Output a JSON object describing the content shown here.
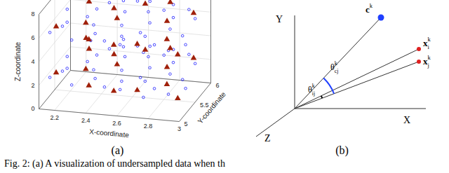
{
  "caption": "Fig. 2: (a) A visualization of undersampled data when th",
  "chart_data": {
    "type": "scatter3d",
    "panel_label": "(a)",
    "xlabel": "X-coordinate",
    "ylabel": "Y-coordinate",
    "zlabel": "Z-coordinate",
    "xlim": [
      2.1,
      3
    ],
    "ylim": [
      5,
      6
    ],
    "zlim": [
      0,
      8
    ],
    "xticks": [
      2.2,
      2.4,
      2.6,
      2.8,
      3
    ],
    "yticks": [
      5,
      5.5,
      6
    ],
    "zticks": [
      0,
      2,
      4,
      6,
      8
    ],
    "grid": true,
    "series": [
      {
        "color": "#0000ff",
        "marker": "circle",
        "values": [
          [
            2.15,
            5.1,
            6.2
          ],
          [
            2.22,
            5.3,
            6.5
          ],
          [
            2.3,
            5.05,
            5.9
          ],
          [
            2.35,
            5.6,
            6.8
          ],
          [
            2.42,
            5.2,
            6.1
          ],
          [
            2.48,
            5.8,
            7.0
          ],
          [
            2.55,
            5.4,
            6.3
          ],
          [
            2.6,
            5.1,
            5.7
          ],
          [
            2.66,
            5.7,
            6.6
          ],
          [
            2.72,
            5.3,
            5.9
          ],
          [
            2.78,
            5.9,
            6.7
          ],
          [
            2.84,
            5.5,
            6.0
          ],
          [
            2.9,
            5.15,
            5.4
          ],
          [
            2.95,
            5.75,
            6.2
          ],
          [
            2.18,
            5.5,
            6.9
          ],
          [
            2.26,
            5.85,
            7.2
          ],
          [
            2.38,
            5.35,
            6.3
          ],
          [
            2.45,
            5.95,
            7.1
          ],
          [
            2.52,
            5.65,
            6.6
          ],
          [
            2.58,
            5.25,
            5.9
          ],
          [
            2.63,
            5.9,
            6.8
          ],
          [
            2.7,
            5.55,
            6.2
          ],
          [
            2.76,
            5.05,
            5.4
          ],
          [
            2.82,
            5.7,
            6.3
          ],
          [
            2.88,
            5.9,
            6.4
          ],
          [
            2.2,
            5.25,
            6.3
          ],
          [
            2.32,
            5.45,
            6.6
          ],
          [
            2.5,
            5.1,
            5.9
          ],
          [
            2.68,
            5.35,
            6.0
          ],
          [
            2.8,
            5.2,
            5.6
          ],
          [
            2.93,
            5.45,
            5.7
          ],
          [
            2.4,
            5.75,
            6.9
          ],
          [
            2.56,
            5.85,
            6.9
          ],
          [
            2.74,
            5.8,
            6.5
          ],
          [
            2.98,
            5.3,
            5.5
          ],
          [
            2.15,
            5.1,
            2.4
          ],
          [
            2.22,
            5.3,
            2.6
          ],
          [
            2.3,
            5.05,
            2.1
          ],
          [
            2.35,
            5.6,
            2.9
          ],
          [
            2.42,
            5.2,
            2.3
          ],
          [
            2.48,
            5.8,
            3.1
          ],
          [
            2.55,
            5.4,
            2.5
          ],
          [
            2.6,
            5.1,
            1.9
          ],
          [
            2.66,
            5.7,
            2.8
          ],
          [
            2.72,
            5.3,
            2.1
          ],
          [
            2.78,
            5.9,
            2.9
          ],
          [
            2.84,
            5.5,
            2.2
          ],
          [
            2.9,
            5.15,
            1.7
          ],
          [
            2.95,
            5.75,
            2.4
          ],
          [
            2.18,
            5.5,
            2.9
          ],
          [
            2.26,
            5.85,
            3.2
          ],
          [
            2.38,
            5.35,
            2.5
          ],
          [
            2.45,
            5.95,
            3.2
          ],
          [
            2.52,
            5.65,
            2.8
          ],
          [
            2.58,
            5.25,
            2.1
          ],
          [
            2.63,
            5.9,
            3.0
          ],
          [
            2.7,
            5.55,
            2.4
          ],
          [
            2.76,
            5.05,
            1.6
          ],
          [
            2.82,
            5.7,
            2.5
          ],
          [
            2.88,
            5.9,
            2.6
          ],
          [
            2.2,
            5.25,
            2.5
          ],
          [
            2.32,
            5.45,
            2.8
          ],
          [
            2.5,
            5.1,
            2.0
          ],
          [
            2.68,
            5.35,
            2.2
          ],
          [
            2.8,
            5.2,
            1.9
          ],
          [
            2.93,
            5.45,
            2.0
          ],
          [
            2.4,
            5.75,
            3.0
          ],
          [
            2.56,
            5.85,
            3.1
          ],
          [
            2.74,
            5.8,
            2.7
          ],
          [
            2.98,
            5.3,
            1.8
          ]
        ]
      },
      {
        "color": "#a0200a",
        "marker": "triangle",
        "values": [
          [
            2.17,
            5.2,
            6.4
          ],
          [
            2.28,
            5.7,
            7.0
          ],
          [
            2.4,
            5.1,
            5.9
          ],
          [
            2.5,
            5.5,
            6.5
          ],
          [
            2.62,
            5.8,
            6.9
          ],
          [
            2.7,
            5.15,
            5.7
          ],
          [
            2.8,
            5.6,
            6.3
          ],
          [
            2.92,
            5.85,
            6.3
          ],
          [
            2.33,
            5.35,
            6.4
          ],
          [
            2.57,
            5.05,
            5.8
          ],
          [
            2.86,
            5.3,
            5.8
          ],
          [
            2.45,
            5.65,
            6.8
          ],
          [
            2.75,
            5.95,
            6.7
          ],
          [
            2.97,
            5.1,
            5.3
          ],
          [
            2.22,
            5.9,
            7.1
          ],
          [
            2.17,
            5.2,
            2.5
          ],
          [
            2.28,
            5.7,
            3.0
          ],
          [
            2.4,
            5.1,
            2.0
          ],
          [
            2.5,
            5.5,
            2.6
          ],
          [
            2.62,
            5.8,
            3.0
          ],
          [
            2.7,
            5.15,
            1.8
          ],
          [
            2.8,
            5.6,
            2.4
          ],
          [
            2.92,
            5.85,
            2.5
          ],
          [
            2.33,
            5.35,
            2.5
          ],
          [
            2.57,
            5.05,
            1.9
          ],
          [
            2.86,
            5.3,
            2.0
          ],
          [
            2.45,
            5.65,
            2.9
          ],
          [
            2.75,
            5.95,
            2.8
          ],
          [
            2.97,
            5.1,
            1.6
          ],
          [
            2.22,
            5.9,
            3.2
          ]
        ]
      }
    ]
  },
  "diagram": {
    "panel_label": "(b)",
    "axes": [
      "X",
      "Y",
      "Z"
    ],
    "points": [
      {
        "label": {
          "base": "c",
          "sup": "k"
        },
        "color": "#1f3fff"
      },
      {
        "label": {
          "base": "x",
          "sub": "i",
          "sup": "k"
        },
        "color": "#e02020"
      },
      {
        "label": {
          "base": "x",
          "sub": "j",
          "sup": "k"
        },
        "color": "#e02020"
      }
    ],
    "angles": [
      {
        "label": {
          "base": "θ",
          "sub": "cj",
          "sup": "k"
        },
        "color": "#1f3fff"
      },
      {
        "label": {
          "base": "θ",
          "sub": "ij",
          "sup": "k"
        },
        "color": "#000000"
      }
    ]
  }
}
